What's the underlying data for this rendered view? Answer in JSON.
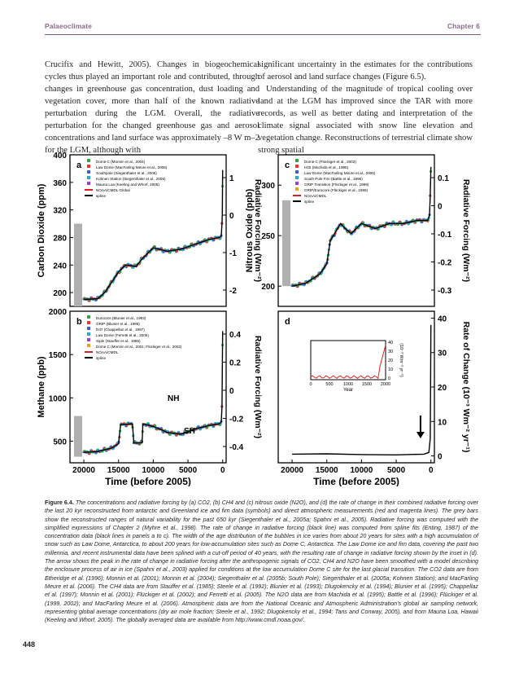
{
  "header": {
    "left": "Palaeoclimate",
    "right": "Chapter 6"
  },
  "body_text": {
    "left_column": "Crucifix and Hewitt, 2005). Changes in biogeochemical cycles thus played an important role and contributed, through changes in greenhouse gas concentration, dust loading and vegetation cover, more than half of the known radiative perturbation during the LGM. Overall, the radiative perturbation for the changed greenhouse gas and aerosol concentrations and land surface was approximately –8 W m–2 for the LGM, although with",
    "right_column_p1": "significant uncertainty in the estimates for the contributions of aerosol and land surface changes (Figure 6.5).",
    "right_column_p2": "Understanding of the magnitude of tropical cooling over land at the LGM has improved since the TAR with more records, as well as better dating and interpretation of the climate signal associated with snow line elevation and vegetation change. Reconstructions of terrestrial climate show strong spatial"
  },
  "figure": {
    "x_axis_label": "Time (before 2005)",
    "x_ticks": [
      "20000",
      "15000",
      "10000",
      "5000",
      "0"
    ],
    "panels": [
      {
        "id": "a",
        "letter": "a",
        "ylabel": "Carbon Dioxide (ppm)",
        "yticks": [
          "400",
          "360",
          "320",
          "280",
          "240",
          "200"
        ],
        "ylim": [
          180,
          400
        ],
        "right_label": "Radiative Forcing (Wm⁻²)",
        "right_ticks": [
          "1",
          "0",
          "-1",
          "-2"
        ],
        "legend": [
          "Dome C (Monnin et al., 2004)",
          "Law Dome (MacFarling Meure et al., 2006)",
          "Southpole (Siegenthaler et al., 2005)",
          "Kohnen Station (Siegenthaler et al., 2005)",
          "Mauna Loa (Keeling and Whorf, 2005)",
          "NOAA/CMDL Global",
          "spline"
        ]
      },
      {
        "id": "b",
        "letter": "b",
        "ylabel": "Methane (ppb)",
        "yticks": [
          "2000",
          "1500",
          "1000",
          "500"
        ],
        "ylim": [
          250,
          2000
        ],
        "right_label": "Radiative Forcing (Wm⁻²)",
        "right_ticks": [
          "0.4",
          "0.2",
          "0",
          "-0.2",
          "-0.4"
        ],
        "legend": [
          "Eurocore (Blunier et al., 1993)",
          "GRIP (Blunier et al., 1995)",
          "D47 (Chappellaz et al., 1997)",
          "Law Dome (Ferretti et al., 2005)",
          "Siple (Stauffer et al., 1985)",
          "Dome C (Monnin et al., 2001; Flückiger et al., 2002)",
          "NOAA/CMDL",
          "spline"
        ],
        "annotations": [
          "NH",
          "SH"
        ]
      },
      {
        "id": "c",
        "letter": "c",
        "ylabel": "Nitrous Oxide (ppb)",
        "yticks": [
          "300",
          "250",
          "200"
        ],
        "ylim": [
          180,
          330
        ],
        "right_label": "Radiative Forcing (Wm⁻²)",
        "right_ticks": [
          "0.1",
          "0",
          "-0.1",
          "-0.2",
          "-0.3"
        ],
        "legend": [
          "Dome C (Flückiger et al., 2002)",
          "H15 (Machida et al., 1995)",
          "Law Dome (MacFarling Meure et al., 2006)",
          "South Pole Firn (Battle et al., 1996)",
          "GRIP Transition (Flückiger et al., 1999)",
          "GRIP/Eurocore (Flückiger et al., 1999)",
          "NOAA/CMDL",
          "spline"
        ]
      },
      {
        "id": "d",
        "letter": "d",
        "right_label": "Rate of Change (10⁻³ Wm⁻² yr⁻¹)",
        "right_ticks": [
          "40",
          "30",
          "20",
          "10",
          "0"
        ],
        "inset": {
          "ylabel": "(10⁻³ Wm⁻² yr⁻¹)",
          "yticks": [
            "40",
            "30",
            "20",
            "10",
            "0"
          ],
          "xticks": [
            "0",
            "500",
            "1000",
            "1500",
            "2000"
          ],
          "xlabel": "Year"
        }
      }
    ]
  },
  "chart_data": [
    {
      "type": "scatter",
      "title": "",
      "panel": "a",
      "xlabel": "Time (before 2005)",
      "ylabel": "Carbon Dioxide (ppm)",
      "xlim": [
        22000,
        -500
      ],
      "ylim": [
        180,
        400
      ],
      "series": [
        {
          "name": "spline",
          "x": [
            20000,
            18000,
            17000,
            15000,
            14000,
            12500,
            11500,
            10000,
            8000,
            6000,
            4000,
            2000,
            500,
            200,
            100,
            50,
            0
          ],
          "y": [
            190,
            191,
            200,
            230,
            240,
            238,
            250,
            265,
            260,
            263,
            270,
            277,
            280,
            282,
            300,
            315,
            378
          ]
        }
      ]
    },
    {
      "type": "scatter",
      "title": "",
      "panel": "b",
      "xlabel": "Time (before 2005)",
      "ylabel": "Methane (ppb)",
      "xlim": [
        22000,
        -500
      ],
      "ylim": [
        250,
        2000
      ],
      "series": [
        {
          "name": "spline",
          "x": [
            20000,
            18000,
            16000,
            15000,
            14700,
            13000,
            12800,
            11600,
            11500,
            10000,
            8200,
            8000,
            6000,
            4000,
            2000,
            500,
            200,
            100,
            0
          ],
          "y": [
            370,
            380,
            420,
            470,
            690,
            700,
            480,
            480,
            700,
            670,
            610,
            600,
            580,
            640,
            680,
            700,
            720,
            900,
            1770
          ]
        }
      ]
    },
    {
      "type": "scatter",
      "title": "",
      "panel": "c",
      "xlabel": "Time (before 2005)",
      "ylabel": "Nitrous Oxide (ppb)",
      "xlim": [
        22000,
        -500
      ],
      "ylim": [
        180,
        330
      ],
      "series": [
        {
          "name": "spline",
          "x": [
            20000,
            18000,
            16000,
            15000,
            14500,
            13000,
            12500,
            11500,
            10000,
            8000,
            6000,
            4000,
            2000,
            500,
            200,
            100,
            0
          ],
          "y": [
            200,
            203,
            212,
            222,
            245,
            262,
            258,
            252,
            262,
            257,
            262,
            262,
            265,
            265,
            270,
            290,
            318
          ]
        }
      ]
    },
    {
      "type": "line",
      "title": "",
      "panel": "d",
      "xlabel": "Time (before 2005)",
      "ylabel": "Rate of Change (10⁻³ Wm⁻² yr⁻¹)",
      "xlim": [
        22000,
        -500
      ],
      "ylim": [
        -2,
        42
      ],
      "series": [
        {
          "name": "rate of change",
          "x": [
            20000,
            15000,
            10000,
            5000,
            1000,
            300,
            100,
            50,
            0
          ],
          "y": [
            0.5,
            0.6,
            0.4,
            0.3,
            0.5,
            1,
            5,
            20,
            38
          ]
        }
      ]
    }
  ],
  "caption": {
    "label": "Figure 6.4.",
    "text": "The concentrations and radiative forcing by (a) CO2, (b) CH4 and (c) nitrous oxide (N2O), and (d) the rate of change in their combined radiative forcing over the last 20 kyr reconstructed from antarctic and Greenland ice and firn data (symbols) and direct atmospheric measurements (red and magenta lines). The grey bars show the reconstructed ranges of natural variability for the past 650 kyr (Siegenthaler et al., 2005a; Spahni et al., 2005). Radiative forcing was computed with the simplified expressions of Chapter 2 (Myhre et al., 1998). The rate of change in radiative forcing (black line) was computed from spline fits (Enting, 1987) of the concentration data (black lines in panels a to c). The width of the age distribution of the bubbles in ice varies from about 20 years for sites with a high accumulation of snow such as Law Dome, Antarctica, to about 200 years for low-accumulation sites such as Dome C, Antarctica. The Law Dome ice and firn data, covering the past two millennia, and recent instrumental data have been splined with a cut-off period of 40 years, with the resulting rate of change in radiative forcing shown by the inset in (d). The arrow shows the peak in the rate of change in radiative forcing after the anthropogenic signals of CO2, CH4 and N2O have been smoothed with a model describing the enclosure process of air in ice (Spahni et al., 2003) applied for conditions at the low accumulation Dome C site for the last glacial transition. The CO2 data are from Etheridge et al. (1996); Monnin et al. (2001); Monnin et al. (2004); Siegenthaler et al. (2005b; South Pole); Siegenthaler et al. (2005a; Kohnen Station); and MacFarling Meure et al. (2006). The CH4 data are from Stauffer et al. (1985); Steele et al. (1992); Blunier et al. (1993); Dlugokencky et al. (1994); Blunier et al. (1995); Chappellaz et al. (1997); Monnin et al. (2001); Flückiger et al. (2002); and Ferretti et al. (2005). The N2O data are from Machida et al. (1995); Battle et al. (1996); Flückiger et al. (1999, 2002); and MacFarling Meure et al. (2006). Atmospheric data are from the National Oceanic and Atmospheric Administration's global air sampling network, representing global average concentrations (dry air mole fraction; Steele et al., 1992; Dlugokencky et al., 1994; Tans and Conway, 2005), and from Mauna Loa, Hawaii (Keeling and Whorf, 2005). The globally averaged data are available from http://www.cmdl.noaa.gov/."
  },
  "page_number": "448"
}
